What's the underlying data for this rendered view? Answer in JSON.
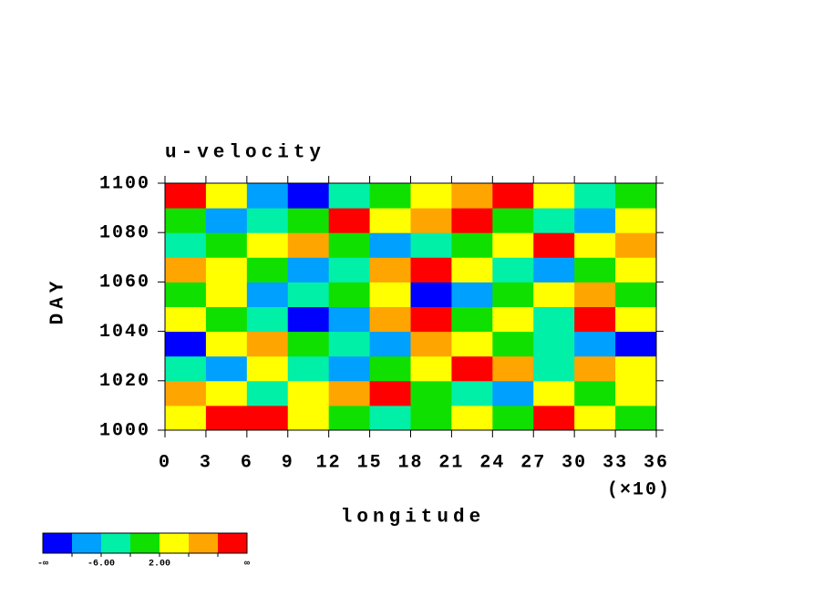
{
  "chart_data": {
    "type": "contour",
    "title": "u-velocity",
    "x_label": "longitude",
    "x_multiplier": "(×10)",
    "y_label": "DAY",
    "xlim": [
      0,
      36
    ],
    "xticks": [
      0,
      3,
      6,
      9,
      12,
      15,
      18,
      21,
      24,
      27,
      30,
      33,
      36
    ],
    "ylim": [
      1000,
      1100
    ],
    "yticks": [
      1000,
      1020,
      1040,
      1060,
      1080,
      1100
    ],
    "levels": [
      -10,
      -6,
      -2,
      2,
      6,
      10
    ],
    "colors": [
      "#0000ff",
      "#00a0ff",
      "#00f0a8",
      "#10e000",
      "#ffff00",
      "#ffa500",
      "#ff0000"
    ],
    "level_labels": [
      "-∞",
      null,
      "-6.00",
      null,
      "2.00",
      null,
      null,
      "∞"
    ],
    "z": [
      [
        4,
        12,
        12,
        4,
        0,
        -4,
        0,
        4,
        0,
        12,
        4,
        0
      ],
      [
        8,
        4,
        -4,
        4,
        8,
        12,
        0,
        -4,
        -8,
        4,
        0,
        4
      ],
      [
        -4,
        -8,
        4,
        -4,
        -8,
        0,
        4,
        12,
        8,
        -4,
        8,
        4
      ],
      [
        -12,
        4,
        8,
        0,
        -4,
        -8,
        8,
        4,
        0,
        -4,
        -8,
        -12
      ],
      [
        4,
        0,
        -4,
        -12,
        -8,
        8,
        12,
        0,
        4,
        -4,
        12,
        4
      ],
      [
        0,
        4,
        -8,
        -4,
        0,
        4,
        -12,
        -8,
        0,
        4,
        8,
        0
      ],
      [
        8,
        4,
        0,
        -8,
        -4,
        8,
        12,
        4,
        -4,
        -8,
        0,
        4
      ],
      [
        -4,
        0,
        4,
        8,
        0,
        -8,
        -4,
        0,
        4,
        12,
        4,
        8
      ],
      [
        0,
        -8,
        -4,
        0,
        12,
        4,
        8,
        12,
        0,
        -4,
        -8,
        4
      ],
      [
        12,
        4,
        -8,
        -12,
        -4,
        0,
        4,
        8,
        12,
        4,
        -4,
        0
      ]
    ]
  }
}
